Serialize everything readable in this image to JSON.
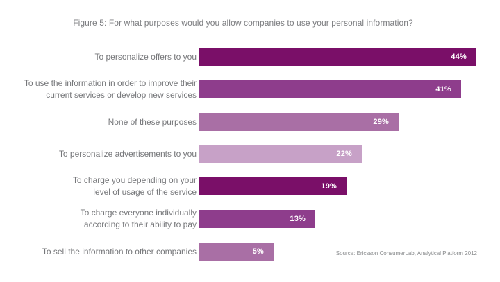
{
  "figure": {
    "title": "Figure 5: For what purposes would you allow companies to use your personal information?",
    "source": "Source: Ericsson ConsumerLab, Analytical Platform 2012"
  },
  "colors": {
    "bar_shade_darkest": "#7a0f68",
    "bar_shade_dark": "#8e3d8c",
    "bar_shade_medium": "#a96fa5",
    "bar_shade_light": "#c7a1c7",
    "bar_shades_cycle": [
      "#7a0f68",
      "#8e3d8c",
      "#a96fa5",
      "#c7a1c7"
    ],
    "category_text": "#76777a",
    "title_text": "#7c7d80",
    "value_text": "#ffffff",
    "source_text": "#8a8c8e"
  },
  "chart_data": {
    "type": "bar",
    "orientation": "horizontal",
    "title": "Figure 5: For what purposes would you allow companies to use your personal information?",
    "categories": [
      "To personalize offers to you",
      "To use the information in order to improve their\ncurrent services or develop new services",
      "None of these purposes",
      "To personalize advertisements to you",
      "To charge you depending on your\nlevel of usage of the service",
      "To charge everyone individually\naccording to their ability to pay",
      "To sell the information to other companies"
    ],
    "values": [
      44,
      41,
      29,
      22,
      19,
      13,
      5
    ],
    "value_labels": [
      "44%",
      "41%",
      "29%",
      "22%",
      "19%",
      "13%",
      "5%"
    ],
    "unit": "%",
    "xlabel": "",
    "ylabel": "",
    "grid": false,
    "legend": "none",
    "value_labels_position": "inside-right",
    "source": "Source: Ericsson ConsumerLab, Analytical Platform 2012"
  }
}
